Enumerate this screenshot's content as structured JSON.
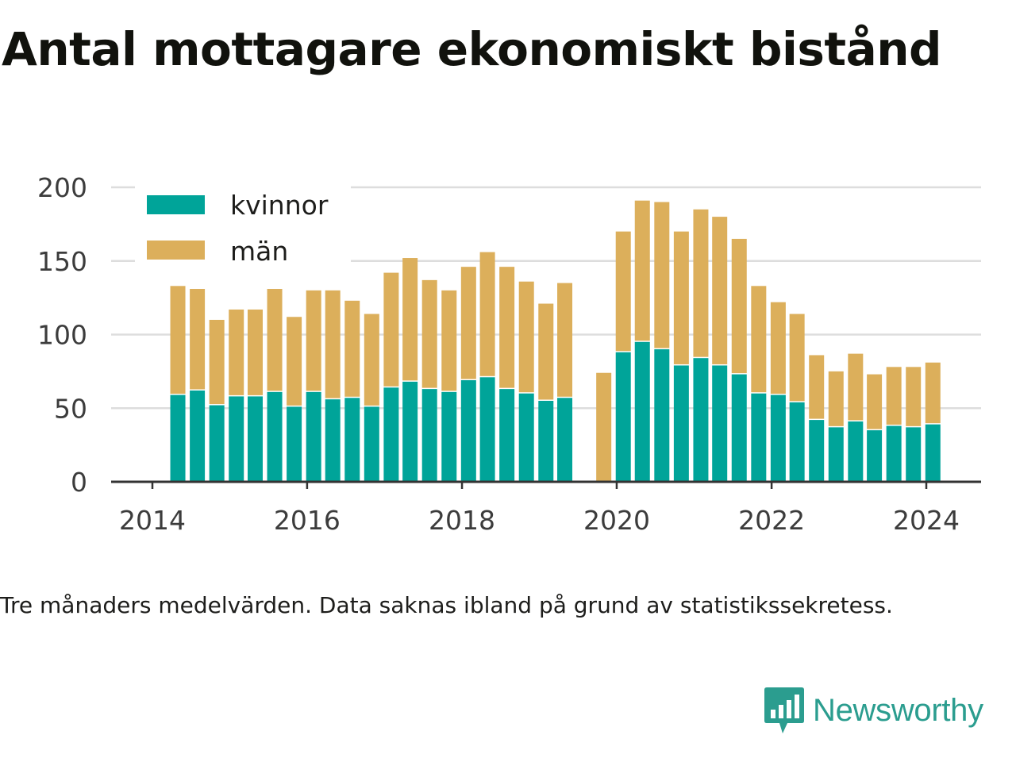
{
  "chart_data": {
    "type": "bar",
    "stacked": true,
    "title": "Antal mottagare ekonomiskt bistånd",
    "xlabel": "",
    "ylabel": "",
    "x_ticks": [
      "2014",
      "2016",
      "2018",
      "2020",
      "2022",
      "2024"
    ],
    "y_ticks": [
      "0",
      "50",
      "100",
      "150",
      "200"
    ],
    "ylim": [
      0,
      200
    ],
    "grid": true,
    "legend_position": "top-left",
    "x": [
      "2014-05",
      "2014-08",
      "2014-11",
      "2015-02",
      "2015-05",
      "2015-08",
      "2015-11",
      "2016-02",
      "2016-05",
      "2016-08",
      "2016-11",
      "2017-02",
      "2017-05",
      "2017-08",
      "2017-11",
      "2018-02",
      "2018-05",
      "2018-08",
      "2018-11",
      "2019-02",
      "2019-05",
      "2019-08",
      "2019-11",
      "2020-02",
      "2020-05",
      "2020-08",
      "2020-11",
      "2021-02",
      "2021-05",
      "2021-08",
      "2021-11",
      "2022-02",
      "2022-05",
      "2022-08",
      "2022-11",
      "2023-02",
      "2023-05",
      "2023-08",
      "2023-11",
      "2024-02"
    ],
    "series": [
      {
        "name": "kvinnor",
        "color": "#00a499",
        "values": [
          59,
          62,
          52,
          58,
          58,
          61,
          51,
          61,
          56,
          57,
          51,
          64,
          68,
          63,
          61,
          69,
          71,
          63,
          60,
          55,
          57,
          null,
          null,
          88,
          95,
          90,
          79,
          84,
          79,
          73,
          60,
          59,
          54,
          42,
          37,
          41,
          35,
          38,
          37,
          39
        ]
      },
      {
        "name": "män",
        "color": "#dcaf5b",
        "values": [
          74,
          69,
          58,
          59,
          59,
          70,
          61,
          69,
          74,
          66,
          63,
          78,
          84,
          74,
          69,
          77,
          85,
          83,
          76,
          66,
          78,
          null,
          74,
          82,
          96,
          100,
          91,
          101,
          101,
          92,
          73,
          63,
          60,
          44,
          38,
          46,
          38,
          40,
          41,
          42
        ]
      }
    ]
  },
  "note": "Tre månaders medelvärden. Data saknas ibland på grund av statistikssekretess.",
  "brand": {
    "name": "Newsworthy",
    "color": "#2b9d8f",
    "icon": "bar-chart-speech-bubble-icon"
  }
}
